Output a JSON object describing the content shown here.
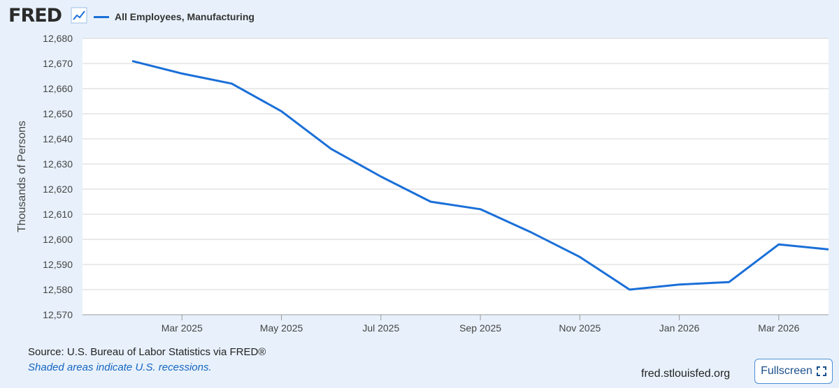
{
  "header": {
    "logo_text": "FRED",
    "logo_icon": "line-chart-icon",
    "legend_label": "All Employees, Manufacturing",
    "series_color": "#1a6fd8"
  },
  "footer": {
    "source": "Source: U.S. Bureau of Labor Statistics via FRED®",
    "note": "Shaded areas indicate U.S. recessions.",
    "url": "fred.stlouisfed.org",
    "fullscreen_label": "Fullscreen",
    "fullscreen_icon": "expand-icon"
  },
  "chart_data": {
    "type": "line",
    "ylabel": "Thousands of Persons",
    "ylim": [
      12570,
      12680
    ],
    "yticks": [
      12570,
      12580,
      12590,
      12600,
      12610,
      12620,
      12630,
      12640,
      12650,
      12660,
      12670,
      12680
    ],
    "ytick_labels": [
      "12,570",
      "12,580",
      "12,590",
      "12,600",
      "12,610",
      "12,620",
      "12,630",
      "12,640",
      "12,650",
      "12,660",
      "12,670",
      "12,680"
    ],
    "xlim": [
      "2025-01",
      "2026-04"
    ],
    "xticks": [
      "2025-03",
      "2025-05",
      "2025-07",
      "2025-09",
      "2025-11",
      "2026-01",
      "2026-03"
    ],
    "xtick_labels": [
      "Mar 2025",
      "May 2025",
      "Jul 2025",
      "Sep 2025",
      "Nov 2025",
      "Jan 2026",
      "Mar 2026"
    ],
    "grid": true,
    "series": [
      {
        "name": "All Employees, Manufacturing",
        "x": [
          "2025-02",
          "2025-03",
          "2025-04",
          "2025-05",
          "2025-06",
          "2025-07",
          "2025-08",
          "2025-09",
          "2025-10",
          "2025-11",
          "2025-12",
          "2026-01",
          "2026-02",
          "2026-03",
          "2026-04"
        ],
        "y": [
          12671,
          12666,
          12662,
          12651,
          12636,
          12625,
          12615,
          12612,
          12603,
          12593,
          12580,
          12582,
          12583,
          12598,
          12596
        ]
      }
    ]
  }
}
